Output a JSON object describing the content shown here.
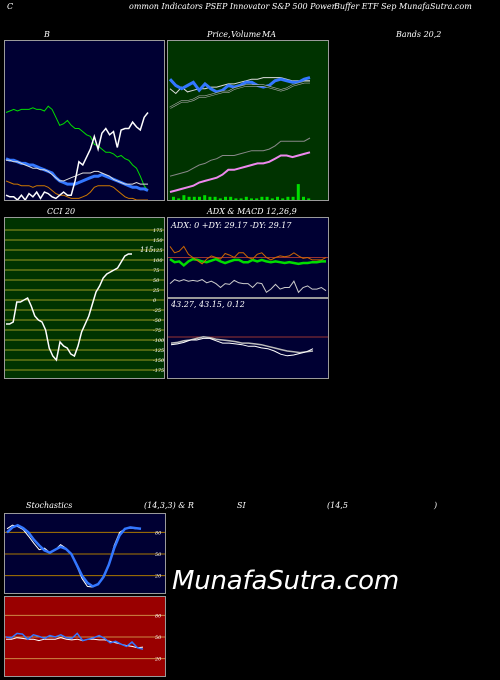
{
  "header": {
    "left": "C",
    "mid": "ommon  Indicators PSEP Innovator S&P 500  Power",
    "right": "Buffer ETF Sep MunafaSutra.com"
  },
  "titles": {
    "bollinger": "B",
    "price_a": "Price,",
    "price_b": "Volume",
    "price_c": "MA",
    "bands": "Bands 20,2",
    "cci": "CCI 20",
    "adx": "ADX  & MACD 12,26,9",
    "stoch_a": "Stochastics",
    "stoch_b": "(14,3,3) & R",
    "stoch_c": "SI",
    "stoch_d": "(14,5",
    "stoch_e": ")"
  },
  "adx_info": "ADX: 0  +DY: 29.17 -DY: 29.17",
  "macd_info": "43.27,  43.15,  0.12",
  "cci_value": "115",
  "watermark": "MunafaSutra.com",
  "colors": {
    "navy": "#000033",
    "green_panel": "#003300",
    "cci_bg": "#003300",
    "cci_grid": "#9a9a20",
    "rsi_bg": "#990000",
    "blue": "#3377ff",
    "bright_green": "#00dd00",
    "orange": "#cc7700",
    "pink": "#ee88ee"
  },
  "chart_data": [
    {
      "type": "line",
      "id": "bollinger",
      "series": [
        {
          "values": [
            0.55,
            0.56,
            0.57,
            0.56,
            0.57,
            0.57,
            0.57,
            0.58,
            0.57,
            0.57,
            0.56,
            0.59,
            0.57,
            0.52,
            0.47,
            0.48,
            0.5,
            0.47,
            0.45,
            0.45,
            0.43,
            0.41,
            0.4,
            0.35,
            0.34,
            0.32,
            0.3,
            0.3,
            0.29,
            0.27,
            0.28,
            0.26,
            0.25,
            0.22,
            0.2,
            0.15,
            0.09,
            0.06
          ]
        },
        {
          "values": [
            0.26,
            0.25,
            0.25,
            0.24,
            0.23,
            0.23,
            0.22,
            0.22,
            0.21,
            0.2,
            0.19,
            0.18,
            0.17,
            0.14,
            0.12,
            0.11,
            0.1,
            0.1,
            0.1,
            0.11,
            0.12,
            0.13,
            0.14,
            0.15,
            0.15,
            0.16,
            0.15,
            0.14,
            0.13,
            0.12,
            0.11,
            0.1,
            0.09,
            0.08,
            0.08,
            0.07,
            0.07,
            0.06
          ]
        },
        {
          "values": [
            0.25,
            0.25,
            0.24,
            0.24,
            0.23,
            0.22,
            0.21,
            0.2,
            0.2,
            0.19,
            0.19,
            0.18,
            0.16,
            0.14,
            0.12,
            0.12,
            0.13,
            0.14,
            0.15,
            0.16,
            0.17,
            0.17,
            0.17,
            0.18,
            0.18,
            0.17,
            0.16,
            0.15,
            0.13,
            0.12,
            0.11,
            0.1,
            0.1,
            0.1,
            0.11,
            0.1,
            0.1,
            0.1
          ]
        },
        {
          "values": [
            0.12,
            0.11,
            0.1,
            0.1,
            0.09,
            0.09,
            0.09,
            0.08,
            0.09,
            0.09,
            0.09,
            0.08,
            0.06,
            0.04,
            0.03,
            0.03,
            0.02,
            0.01,
            0.01,
            0.01,
            0.02,
            0.03,
            0.05,
            0.08,
            0.09,
            0.09,
            0.09,
            0.09,
            0.08,
            0.06,
            0.04,
            0.02,
            0.01,
            0.01,
            0.0,
            0.0,
            0.0,
            0.0
          ]
        },
        {
          "values": [
            0.03,
            0.02,
            0.02,
            0.0,
            0.03,
            0.0,
            0.04,
            0.02,
            0.05,
            0.01,
            0.05,
            0.04,
            0.02,
            0.01,
            0.03,
            0.05,
            0.03,
            0.03,
            0.12,
            0.24,
            0.22,
            0.27,
            0.32,
            0.4,
            0.32,
            0.42,
            0.45,
            0.41,
            0.43,
            0.33,
            0.44,
            0.45,
            0.45,
            0.49,
            0.46,
            0.44,
            0.52,
            0.55
          ]
        }
      ]
    },
    {
      "type": "line",
      "id": "price",
      "series": [
        {
          "values": [
            0.3,
            0.33,
            0.29,
            0.32,
            0.31,
            0.3,
            0.3,
            0.29,
            0.29,
            0.28,
            0.27,
            0.27,
            0.26,
            0.25,
            0.24,
            0.24,
            0.23,
            0.23,
            0.23,
            0.23,
            0.24,
            0.25,
            0.25,
            0.25,
            0.25
          ]
        },
        {
          "values": [
            0.24,
            0.28,
            0.3,
            0.28,
            0.26,
            0.31,
            0.27,
            0.3,
            0.32,
            0.31,
            0.28,
            0.29,
            0.28,
            0.26,
            0.26,
            0.28,
            0.29,
            0.28,
            0.25,
            0.24,
            0.25,
            0.26,
            0.26,
            0.24,
            0.23
          ]
        },
        {
          "values": [
            0.42,
            0.4,
            0.38,
            0.38,
            0.37,
            0.35,
            0.35,
            0.34,
            0.33,
            0.32,
            0.32,
            0.3,
            0.29,
            0.28,
            0.28,
            0.28,
            0.28,
            0.29,
            0.3,
            0.31,
            0.3,
            0.28,
            0.27,
            0.26,
            0.26
          ]
        },
        {
          "values": [
            0.85,
            0.84,
            0.83,
            0.82,
            0.8,
            0.78,
            0.77,
            0.75,
            0.74,
            0.72,
            0.72,
            0.72,
            0.71,
            0.7,
            0.69,
            0.69,
            0.69,
            0.68,
            0.66,
            0.63,
            0.63,
            0.63,
            0.63,
            0.63,
            0.61
          ]
        },
        {
          "values": [
            0.95,
            0.94,
            0.93,
            0.92,
            0.91,
            0.89,
            0.88,
            0.87,
            0.86,
            0.84,
            0.81,
            0.81,
            0.8,
            0.79,
            0.78,
            0.77,
            0.77,
            0.76,
            0.74,
            0.72,
            0.72,
            0.73,
            0.72,
            0.71,
            0.7
          ]
        }
      ],
      "volume": [
        0.02,
        0.01,
        0.03,
        0.02,
        0.02,
        0.02,
        0.03,
        0.02,
        0.02,
        0.01,
        0.02,
        0.02,
        0.01,
        0.01,
        0.02,
        0.01,
        0.01,
        0.02,
        0.02,
        0.01,
        0.02,
        0.01,
        0.02,
        0.02,
        0.1,
        0.02,
        0.01
      ]
    },
    {
      "type": "line",
      "id": "cci",
      "tick_labels": [
        "175",
        "150",
        "125",
        "100",
        "75",
        "50",
        "25",
        "0",
        "-25",
        "-50",
        "-75",
        "-100",
        "-125",
        "-150",
        "-175"
      ],
      "series": [
        {
          "values": [
            -60,
            -60,
            -55,
            -5,
            -5,
            0,
            5,
            -15,
            -40,
            -50,
            -55,
            -75,
            -120,
            -140,
            -150,
            -105,
            -115,
            -120,
            -135,
            -140,
            -115,
            -80,
            -60,
            -40,
            -10,
            20,
            35,
            55,
            65,
            70,
            75,
            80,
            95,
            110,
            115,
            115
          ]
        }
      ]
    },
    {
      "type": "line",
      "id": "adx",
      "series": [
        {
          "values": [
            48,
            44,
            45,
            40,
            45,
            48,
            47,
            45,
            44,
            46,
            48,
            45,
            43,
            45,
            47,
            47,
            44,
            44,
            47,
            45,
            47,
            45,
            44,
            45,
            44,
            43,
            44,
            43,
            42,
            43,
            43,
            44,
            44,
            45,
            45
          ]
        },
        {
          "values": [
            64,
            56,
            58,
            64,
            54,
            50,
            46,
            42,
            48,
            52,
            50,
            48,
            55,
            53,
            50,
            56,
            56,
            50,
            48,
            54,
            56,
            50,
            47,
            50,
            52,
            51,
            52,
            56,
            52,
            49,
            50,
            47,
            47,
            47,
            50
          ]
        },
        {
          "values": [
            17,
            22,
            20,
            22,
            20,
            21,
            20,
            22,
            18,
            20,
            17,
            12,
            17,
            16,
            21,
            18,
            17,
            17,
            12,
            18,
            17,
            6,
            10,
            16,
            10,
            12,
            12,
            20,
            6,
            12,
            14,
            10,
            10,
            12,
            8
          ]
        }
      ]
    },
    {
      "type": "line",
      "id": "macd",
      "series": [
        {
          "values": [
            0.32,
            0.33,
            0.35,
            0.38,
            0.38,
            0.4,
            0.4,
            0.37,
            0.34,
            0.34,
            0.33,
            0.32,
            0.3,
            0.3,
            0.28,
            0.27,
            0.24,
            0.2,
            0.18,
            0.19,
            0.21,
            0.23,
            0.27
          ]
        },
        {
          "values": [
            0.34,
            0.35,
            0.37,
            0.38,
            0.4,
            0.42,
            0.41,
            0.39,
            0.38,
            0.37,
            0.36,
            0.34,
            0.34,
            0.33,
            0.32,
            0.3,
            0.28,
            0.26,
            0.24,
            0.23,
            0.22,
            0.23,
            0.24
          ]
        }
      ]
    },
    {
      "type": "line",
      "id": "stochastics",
      "tick_labels": [
        "80",
        "50",
        "20"
      ],
      "series": [
        {
          "values": [
            85,
            90,
            88,
            84,
            75,
            65,
            56,
            58,
            52,
            56,
            63,
            58,
            49,
            33,
            16,
            5,
            4,
            8,
            20,
            36,
            62,
            80,
            85,
            86,
            85,
            85
          ]
        },
        {
          "values": [
            80,
            87,
            90,
            86,
            80,
            70,
            62,
            55,
            52,
            56,
            60,
            57,
            50,
            35,
            20,
            10,
            5,
            8,
            18,
            35,
            58,
            76,
            85,
            87,
            86,
            85
          ]
        }
      ]
    },
    {
      "type": "line",
      "id": "rsi",
      "tick_labels": [
        "80",
        "50",
        "20"
      ],
      "series": [
        {
          "values": [
            47,
            47,
            49,
            48,
            47,
            47,
            45,
            47,
            47,
            47,
            49,
            47,
            46,
            47,
            45,
            47,
            47,
            46,
            46,
            44,
            42,
            40,
            38,
            37,
            35,
            36
          ]
        },
        {
          "values": [
            50,
            49,
            55,
            54,
            47,
            53,
            51,
            48,
            52,
            50,
            53,
            49,
            48,
            55,
            45,
            47,
            49,
            52,
            48,
            42,
            44,
            40,
            37,
            43,
            35,
            33
          ]
        }
      ]
    }
  ]
}
